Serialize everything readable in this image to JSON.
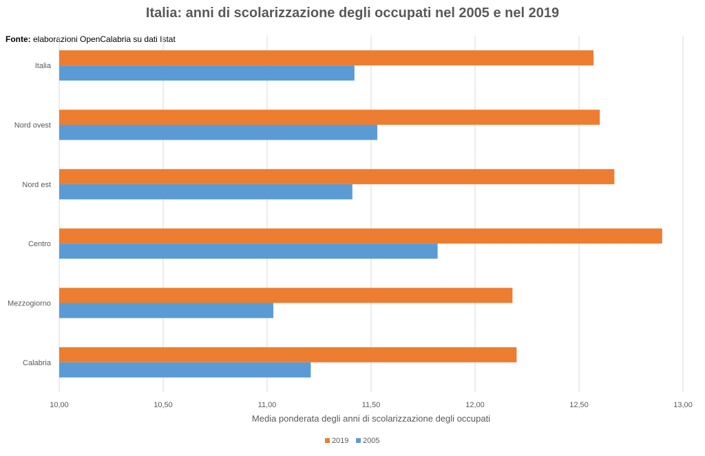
{
  "title": "Italia: anni di scolarizzazione degli occupati nel 2005 e nel 2019",
  "source": {
    "label": "Fonte:",
    "text": " elaborazioni OpenCalabria su dati Istat"
  },
  "colors": {
    "s2019": "#ED7D31",
    "s2005": "#5B9BD5",
    "grid": "#D9D9D9"
  },
  "chart_data": {
    "type": "bar",
    "orientation": "horizontal",
    "categories": [
      "Italia",
      "Nord ovest",
      "Nord est",
      "Centro",
      "Mezzogiorno",
      "Calabria"
    ],
    "series": [
      {
        "name": "2019",
        "values": [
          12.57,
          12.6,
          12.67,
          12.9,
          12.18,
          12.2
        ]
      },
      {
        "name": "2005",
        "values": [
          11.42,
          11.53,
          11.41,
          11.82,
          11.03,
          11.21
        ]
      }
    ],
    "xlim": [
      10.0,
      13.0
    ],
    "xticks": [
      "10,00",
      "10,50",
      "11,00",
      "11,50",
      "12,00",
      "12,50",
      "13,00"
    ],
    "xlabel": "Media ponderata degli anni di scolarizzazione degli occupati",
    "grid": true,
    "legend_position": "bottom"
  }
}
